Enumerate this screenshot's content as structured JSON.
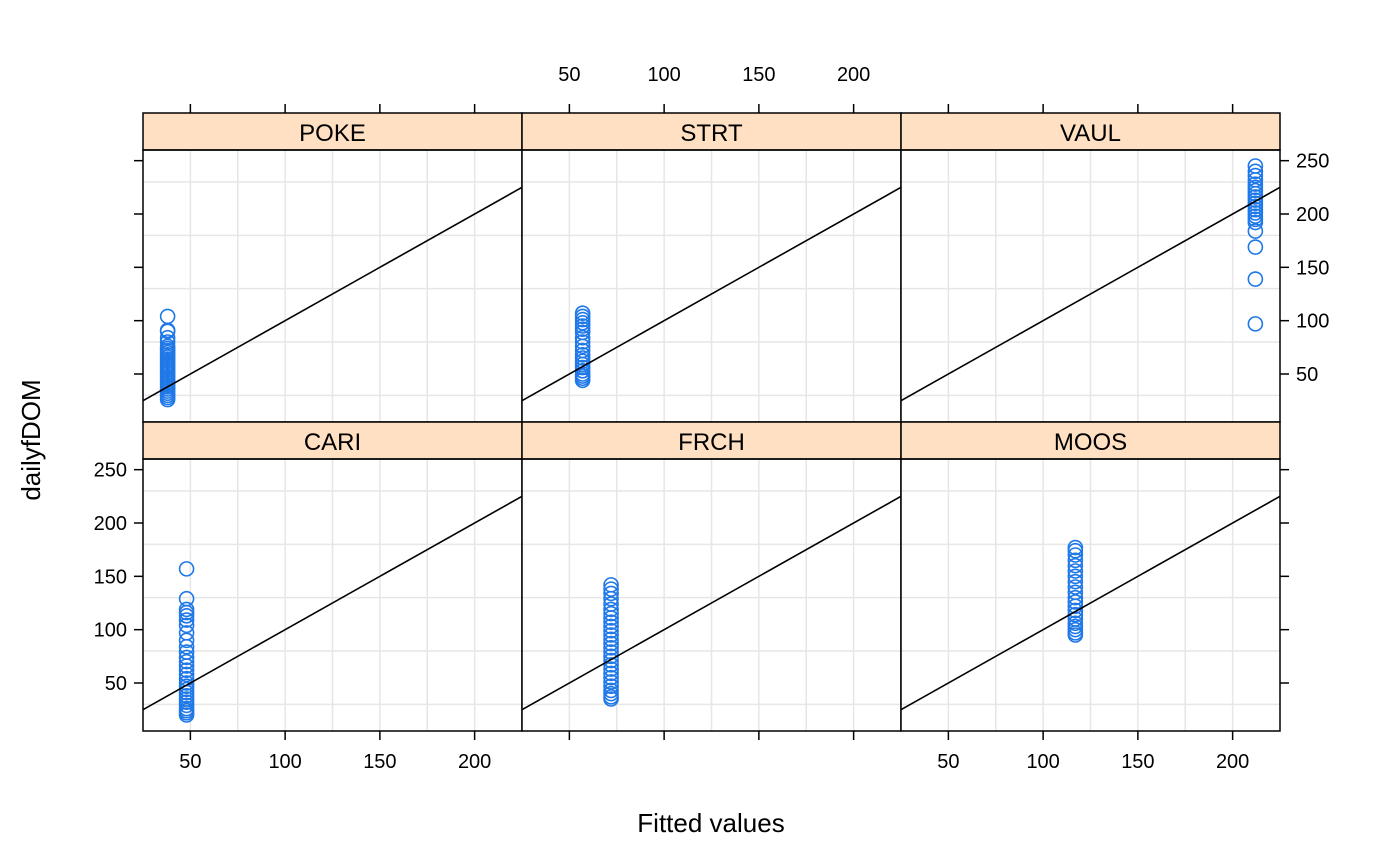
{
  "chart_data": {
    "type": "scatter",
    "xlabel": "Fitted values",
    "ylabel": "dailyfDOM",
    "xlim": [
      25,
      225
    ],
    "ylim": [
      5,
      260
    ],
    "x_ticks": [
      50,
      100,
      150,
      200
    ],
    "y_ticks": [
      50,
      100,
      150,
      200,
      250
    ],
    "grid": true,
    "reference_line": {
      "intercept": 0,
      "slope": 1
    },
    "colors": {
      "points": "#1f78e8",
      "strip": "#ffe0c2",
      "grid": "#e6e6e6",
      "line": "#000000"
    },
    "panels": [
      {
        "name": "POKE",
        "x": 38,
        "y": [
          104,
          91,
          90,
          84,
          80,
          76,
          74,
          72,
          70,
          68,
          66,
          64,
          62,
          60,
          58,
          56,
          54,
          52,
          50,
          48,
          46,
          44,
          42,
          40,
          38,
          36,
          34,
          32,
          30,
          28,
          26
        ]
      },
      {
        "name": "STRT",
        "x": 57,
        "y": [
          107,
          104,
          101,
          98,
          95,
          92,
          89,
          84,
          80,
          76,
          72,
          68,
          65,
          62,
          59,
          56,
          53,
          50,
          48,
          46,
          44
        ]
      },
      {
        "name": "VAUL",
        "x": 212,
        "y": [
          245,
          240,
          236,
          232,
          228,
          225,
          222,
          219,
          216,
          213,
          210,
          207,
          204,
          201,
          198,
          195,
          192,
          184,
          169,
          139,
          97
        ]
      },
      {
        "name": "CARI",
        "x": 48,
        "y": [
          157,
          129,
          119,
          116,
          113,
          109,
          104,
          97,
          90,
          84,
          79,
          74,
          70,
          66,
          62,
          58,
          54,
          50,
          47,
          44,
          41,
          38,
          35,
          32,
          29,
          26,
          24,
          22,
          20
        ]
      },
      {
        "name": "FRCH",
        "x": 72,
        "y": [
          142,
          138,
          134,
          129,
          124,
          119,
          115,
          111,
          107,
          103,
          99,
          95,
          91,
          87,
          83,
          79,
          75,
          71,
          67,
          63,
          59,
          55,
          51,
          47,
          43,
          40,
          37,
          35
        ]
      },
      {
        "name": "MOOS",
        "x": 117,
        "y": [
          177,
          174,
          170,
          165,
          160,
          155,
          150,
          145,
          140,
          135,
          130,
          126,
          122,
          118,
          114,
          110,
          106,
          103,
          100,
          97,
          95
        ]
      }
    ]
  }
}
